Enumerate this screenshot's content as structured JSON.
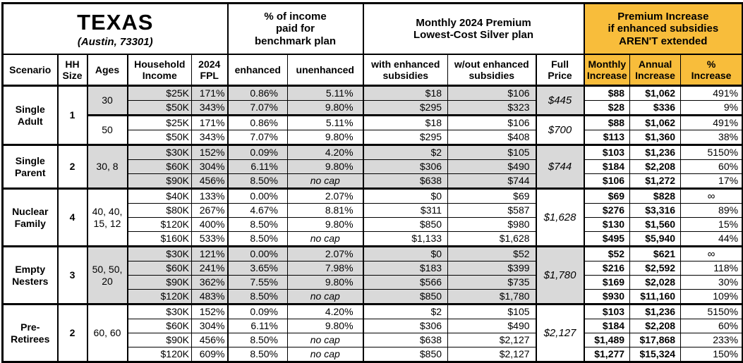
{
  "title": {
    "state": "TEXAS",
    "location": "(Austin, 73301)"
  },
  "colors": {
    "highlight": "#F8BD3B",
    "shade": "#D9D9D9"
  },
  "section_headers": {
    "income_pct": "% of income\npaid for\nbenchmark plan",
    "premium": "Monthly 2024 Premium\nLowest-Cost Silver plan",
    "increase": "Premium Increase\nif enhanced subsidies\nAREN'T extended"
  },
  "columns": {
    "scenario": "Scenario",
    "hh": "HH\nSize",
    "ages": "Ages",
    "income": "Household\nIncome",
    "fpl": "2024\nFPL",
    "enhanced": "enhanced",
    "unenhanced": "unenhanced",
    "with_sub": "with enhanced\nsubsidies",
    "without_sub": "w/out enhanced\nsubsidies",
    "full": "Full\nPrice",
    "monthly": "Monthly\nIncrease",
    "annual": "Annual\nIncrease",
    "pct": "%\nIncrease"
  },
  "groups": [
    {
      "scenario": "Single Adult",
      "hh_size": "1",
      "subgroups": [
        {
          "ages": "30",
          "shaded": true,
          "full_price": "$445",
          "rows": [
            {
              "income": "$25K",
              "fpl": "171%",
              "enhanced": "0.86%",
              "unenhanced": "5.11%",
              "with_sub": "$18",
              "without_sub": "$106",
              "monthly": "$88",
              "annual": "$1,062",
              "pct": "491%"
            },
            {
              "income": "$50K",
              "fpl": "343%",
              "enhanced": "7.07%",
              "unenhanced": "9.80%",
              "with_sub": "$295",
              "without_sub": "$323",
              "monthly": "$28",
              "annual": "$336",
              "pct": "9%"
            }
          ]
        },
        {
          "ages": "50",
          "shaded": false,
          "full_price": "$700",
          "rows": [
            {
              "income": "$25K",
              "fpl": "171%",
              "enhanced": "0.86%",
              "unenhanced": "5.11%",
              "with_sub": "$18",
              "without_sub": "$106",
              "monthly": "$88",
              "annual": "$1,062",
              "pct": "491%"
            },
            {
              "income": "$50K",
              "fpl": "343%",
              "enhanced": "7.07%",
              "unenhanced": "9.80%",
              "with_sub": "$295",
              "without_sub": "$408",
              "monthly": "$113",
              "annual": "$1,360",
              "pct": "38%"
            }
          ]
        }
      ]
    },
    {
      "scenario": "Single Parent",
      "hh_size": "2",
      "subgroups": [
        {
          "ages": "30, 8",
          "shaded": true,
          "full_price": "$744",
          "rows": [
            {
              "income": "$30K",
              "fpl": "152%",
              "enhanced": "0.09%",
              "unenhanced": "4.20%",
              "with_sub": "$2",
              "without_sub": "$105",
              "monthly": "$103",
              "annual": "$1,236",
              "pct": "5150%"
            },
            {
              "income": "$60K",
              "fpl": "304%",
              "enhanced": "6.11%",
              "unenhanced": "9.80%",
              "with_sub": "$306",
              "without_sub": "$490",
              "monthly": "$184",
              "annual": "$2,208",
              "pct": "60%"
            },
            {
              "income": "$90K",
              "fpl": "456%",
              "enhanced": "8.50%",
              "unenhanced": "no cap",
              "with_sub": "$638",
              "without_sub": "$744",
              "monthly": "$106",
              "annual": "$1,272",
              "pct": "17%"
            }
          ]
        }
      ]
    },
    {
      "scenario": "Nuclear Family",
      "hh_size": "4",
      "subgroups": [
        {
          "ages": "40, 40,\n15, 12",
          "shaded": false,
          "full_price": "$1,628",
          "rows": [
            {
              "income": "$40K",
              "fpl": "133%",
              "enhanced": "0.00%",
              "unenhanced": "2.07%",
              "with_sub": "$0",
              "without_sub": "$69",
              "monthly": "$69",
              "annual": "$828",
              "pct": "∞"
            },
            {
              "income": "$80K",
              "fpl": "267%",
              "enhanced": "4.67%",
              "unenhanced": "8.81%",
              "with_sub": "$311",
              "without_sub": "$587",
              "monthly": "$276",
              "annual": "$3,316",
              "pct": "89%"
            },
            {
              "income": "$120K",
              "fpl": "400%",
              "enhanced": "8.50%",
              "unenhanced": "9.80%",
              "with_sub": "$850",
              "without_sub": "$980",
              "monthly": "$130",
              "annual": "$1,560",
              "pct": "15%"
            },
            {
              "income": "$160K",
              "fpl": "533%",
              "enhanced": "8.50%",
              "unenhanced": "no cap",
              "with_sub": "$1,133",
              "without_sub": "$1,628",
              "monthly": "$495",
              "annual": "$5,940",
              "pct": "44%"
            }
          ]
        }
      ]
    },
    {
      "scenario": "Empty Nesters",
      "hh_size": "3",
      "subgroups": [
        {
          "ages": "50, 50,\n20",
          "shaded": true,
          "full_price": "$1,780",
          "rows": [
            {
              "income": "$30K",
              "fpl": "121%",
              "enhanced": "0.00%",
              "unenhanced": "2.07%",
              "with_sub": "$0",
              "without_sub": "$52",
              "monthly": "$52",
              "annual": "$621",
              "pct": "∞"
            },
            {
              "income": "$60K",
              "fpl": "241%",
              "enhanced": "3.65%",
              "unenhanced": "7.98%",
              "with_sub": "$183",
              "without_sub": "$399",
              "monthly": "$216",
              "annual": "$2,592",
              "pct": "118%"
            },
            {
              "income": "$90K",
              "fpl": "362%",
              "enhanced": "7.55%",
              "unenhanced": "9.80%",
              "with_sub": "$566",
              "without_sub": "$735",
              "monthly": "$169",
              "annual": "$2,028",
              "pct": "30%"
            },
            {
              "income": "$120K",
              "fpl": "483%",
              "enhanced": "8.50%",
              "unenhanced": "no cap",
              "with_sub": "$850",
              "without_sub": "$1,780",
              "monthly": "$930",
              "annual": "$11,160",
              "pct": "109%"
            }
          ]
        }
      ]
    },
    {
      "scenario": "Pre-Retirees",
      "hh_size": "2",
      "subgroups": [
        {
          "ages": "60, 60",
          "shaded": false,
          "full_price": "$2,127",
          "rows": [
            {
              "income": "$30K",
              "fpl": "152%",
              "enhanced": "0.09%",
              "unenhanced": "4.20%",
              "with_sub": "$2",
              "without_sub": "$105",
              "monthly": "$103",
              "annual": "$1,236",
              "pct": "5150%"
            },
            {
              "income": "$60K",
              "fpl": "304%",
              "enhanced": "6.11%",
              "unenhanced": "9.80%",
              "with_sub": "$306",
              "without_sub": "$490",
              "monthly": "$184",
              "annual": "$2,208",
              "pct": "60%"
            },
            {
              "income": "$90K",
              "fpl": "456%",
              "enhanced": "8.50%",
              "unenhanced": "no cap",
              "with_sub": "$638",
              "without_sub": "$2,127",
              "monthly": "$1,489",
              "annual": "$17,868",
              "pct": "233%"
            },
            {
              "income": "$120K",
              "fpl": "609%",
              "enhanced": "8.50%",
              "unenhanced": "no cap",
              "with_sub": "$850",
              "without_sub": "$2,127",
              "monthly": "$1,277",
              "annual": "$15,324",
              "pct": "150%"
            }
          ]
        }
      ]
    }
  ]
}
